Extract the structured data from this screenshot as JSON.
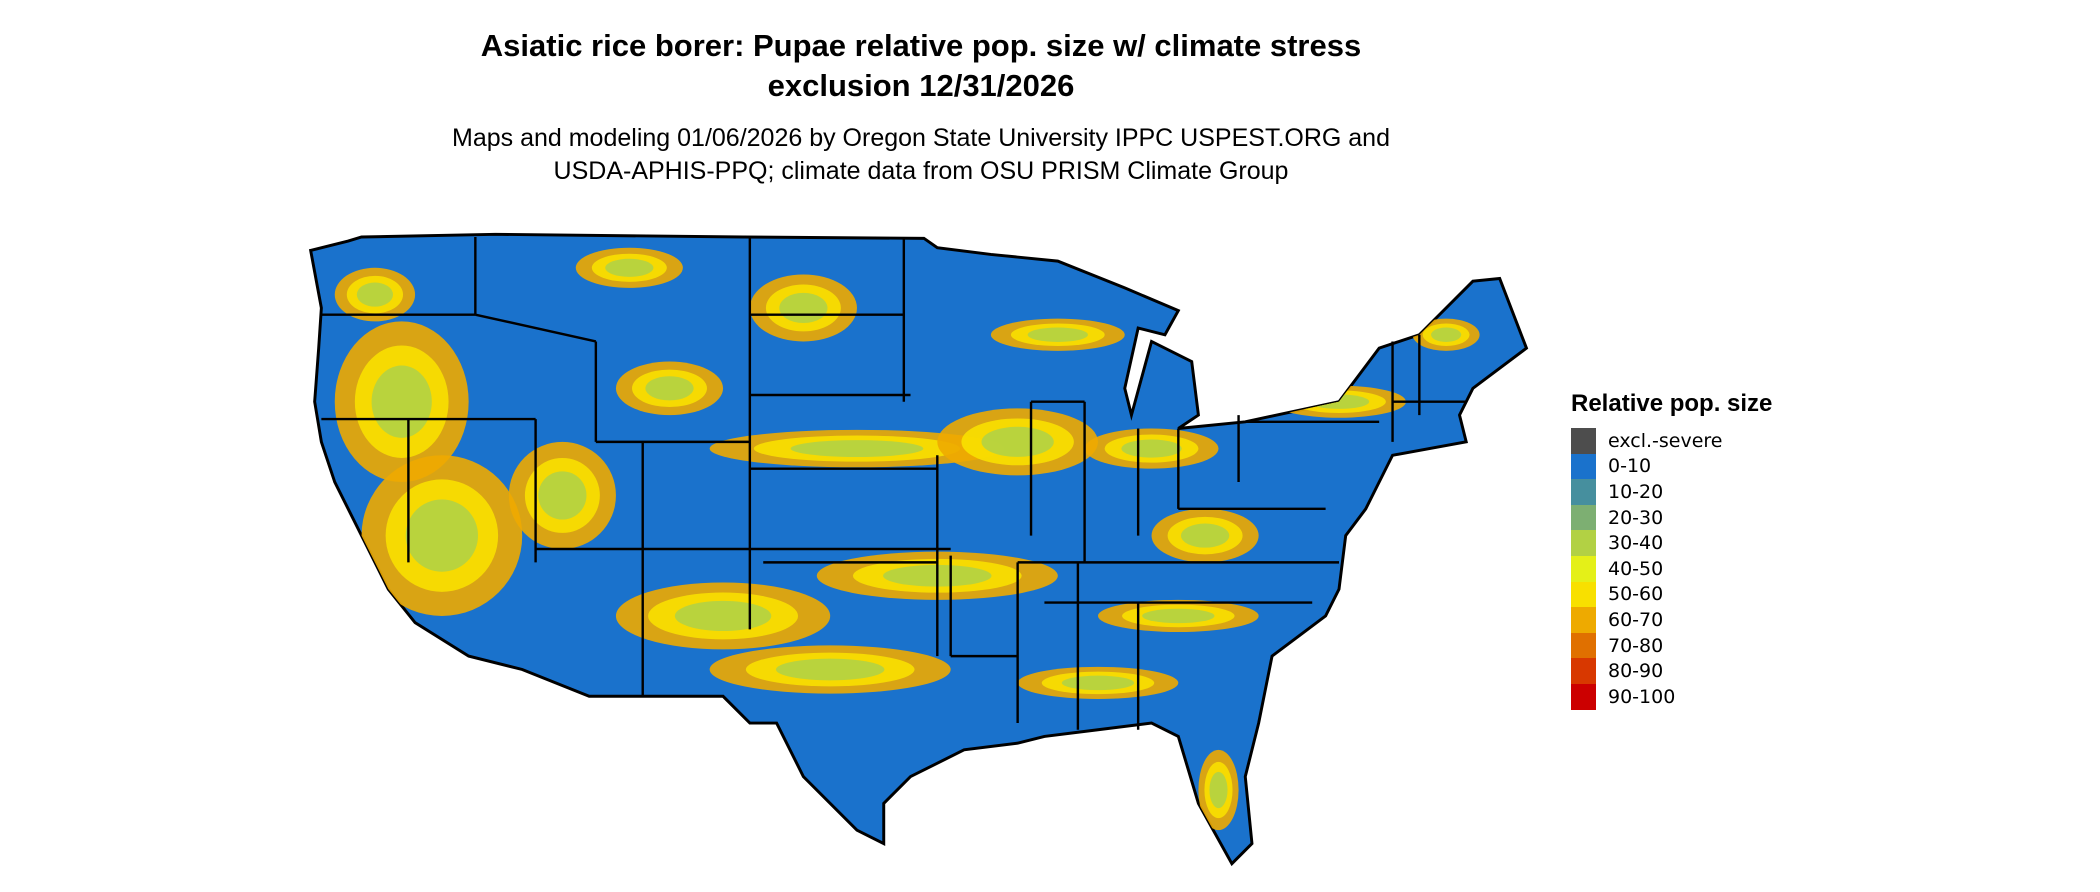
{
  "title_line1": "Asiatic rice borer: Pupae relative pop. size w/ climate stress",
  "title_line2": "exclusion 12/31/2026",
  "subtitle_line1": "Maps and modeling 01/06/2026 by Oregon State University IPPC USPEST.ORG and",
  "subtitle_line2": "USDA-APHIS-PPQ; climate data from OSU PRISM Climate Group",
  "legend": {
    "title": "Relative pop. size",
    "items": [
      {
        "label": "excl.-severe",
        "color": "#4d4d4d"
      },
      {
        "label": "0-10",
        "color": "#1a72cc"
      },
      {
        "label": "10-20",
        "color": "#468f9e"
      },
      {
        "label": "20-30",
        "color": "#7daf72"
      },
      {
        "label": "30-40",
        "color": "#b2d144"
      },
      {
        "label": "40-50",
        "color": "#e4f018"
      },
      {
        "label": "50-60",
        "color": "#f8e000"
      },
      {
        "label": "60-70",
        "color": "#eeaa00"
      },
      {
        "label": "70-80",
        "color": "#e07000"
      },
      {
        "label": "80-90",
        "color": "#d83800"
      },
      {
        "label": "90-100",
        "color": "#cc0000"
      }
    ]
  }
}
